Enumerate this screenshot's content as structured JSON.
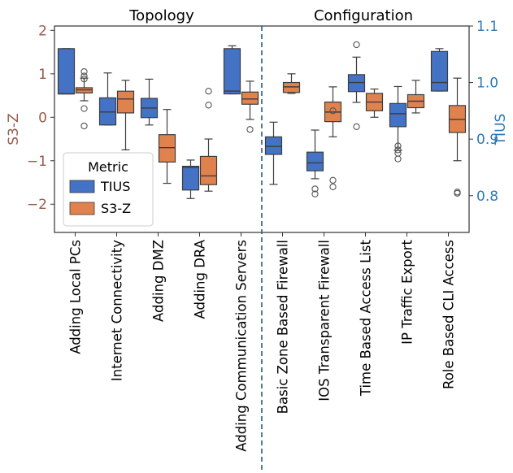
{
  "chart_data": {
    "type": "box",
    "title": "",
    "sections": [
      {
        "label": "Topology",
        "categories": 5
      },
      {
        "label": "Configuration",
        "categories": 5
      }
    ],
    "categories": [
      "Adding Local PCs",
      "Internet Connectivity",
      "Adding DMZ",
      "Adding DRA",
      "Adding Communication Servers",
      "Basic Zone Based Firewall",
      "IOS Transparent Firewall",
      "Time Based Access List",
      "IP Traffic Export",
      "Role Based CLI Access"
    ],
    "y_left": {
      "label": "S3-Z",
      "range": [
        -2.65,
        2.1
      ],
      "ticks": [
        -2,
        -1,
        0,
        1,
        2
      ],
      "color": "#9a5a4a"
    },
    "y_right": {
      "label": "TIUS",
      "range": [
        0.735,
        1.1
      ],
      "ticks": [
        0.8,
        0.9,
        1.0,
        1.1
      ],
      "tick_labels": [
        "0.8",
        "0.9",
        "1.0",
        "1.1"
      ],
      "color": "#2f79b5"
    },
    "legend": {
      "title": "Metric",
      "position": "lower-left"
    },
    "series": [
      {
        "name": "TIUS",
        "axis": "right",
        "color": "#4472c4",
        "boxes": [
          {
            "min": 0.98,
            "q1": 0.98,
            "median": 0.98,
            "q3": 1.06,
            "max": 1.06,
            "outliers": []
          },
          {
            "min": 0.925,
            "q1": 0.925,
            "median": 0.948,
            "q3": 0.973,
            "max": 1.017,
            "outliers": []
          },
          {
            "min": 0.925,
            "q1": 0.938,
            "median": 0.955,
            "q3": 0.972,
            "max": 1.006,
            "outliers": []
          },
          {
            "min": 0.795,
            "q1": 0.81,
            "median": 0.85,
            "q3": 0.852,
            "max": 0.863,
            "outliers": []
          },
          {
            "min": 0.98,
            "q1": 0.98,
            "median": 0.985,
            "q3": 1.06,
            "max": 1.065,
            "outliers": []
          },
          {
            "min": 0.82,
            "q1": 0.873,
            "median": 0.887,
            "q3": 0.904,
            "max": 0.93,
            "outliers": []
          },
          {
            "min": 0.83,
            "q1": 0.844,
            "median": 0.858,
            "q3": 0.877,
            "max": 0.916,
            "outliers": [
              0.812,
              0.803
            ]
          },
          {
            "min": 0.965,
            "q1": 0.984,
            "median": 1.0,
            "q3": 1.014,
            "max": 1.045,
            "outliers": [
              0.922,
              1.067
            ]
          },
          {
            "min": 0.88,
            "q1": 0.922,
            "median": 0.945,
            "q3": 0.963,
            "max": 0.993,
            "outliers": [
              0.888,
              0.881,
              0.875,
              0.865
            ]
          },
          {
            "min": 0.985,
            "q1": 0.985,
            "median": 1.0,
            "q3": 1.055,
            "max": 1.06,
            "outliers": []
          }
        ]
      },
      {
        "name": "S3-Z",
        "axis": "left",
        "color": "#e0824e",
        "boxes": [
          {
            "min": 0.38,
            "q1": 0.56,
            "median": 0.63,
            "q3": 0.68,
            "max": 0.9,
            "outliers": [
              1.05,
              0.95,
              0.88,
              0.2,
              -0.2
            ]
          },
          {
            "min": -0.75,
            "q1": 0.1,
            "median": 0.42,
            "q3": 0.6,
            "max": 0.85,
            "outliers": []
          },
          {
            "min": -1.52,
            "q1": -1.03,
            "median": -0.7,
            "q3": -0.4,
            "max": 0.18,
            "outliers": []
          },
          {
            "min": -1.7,
            "q1": -1.55,
            "median": -1.35,
            "q3": -0.9,
            "max": -0.5,
            "outliers": [
              0.6,
              0.28
            ]
          },
          {
            "min": -0.05,
            "q1": 0.3,
            "median": 0.42,
            "q3": 0.58,
            "max": 0.83,
            "outliers": [
              -0.28
            ]
          },
          {
            "min": 0.55,
            "q1": 0.57,
            "median": 0.7,
            "q3": 0.8,
            "max": 1.0,
            "outliers": []
          },
          {
            "min": -0.45,
            "q1": -0.1,
            "median": 0.12,
            "q3": 0.35,
            "max": 0.7,
            "outliers": [
              0.15,
              -1.45,
              -1.6
            ]
          },
          {
            "min": 0.0,
            "q1": 0.15,
            "median": 0.35,
            "q3": 0.55,
            "max": 0.65,
            "outliers": []
          },
          {
            "min": 0.1,
            "q1": 0.22,
            "median": 0.37,
            "q3": 0.52,
            "max": 0.85,
            "outliers": []
          },
          {
            "min": -1.0,
            "q1": -0.35,
            "median": -0.05,
            "q3": 0.27,
            "max": 0.9,
            "outliers": [
              -1.72,
              -1.75
            ]
          }
        ]
      }
    ]
  }
}
